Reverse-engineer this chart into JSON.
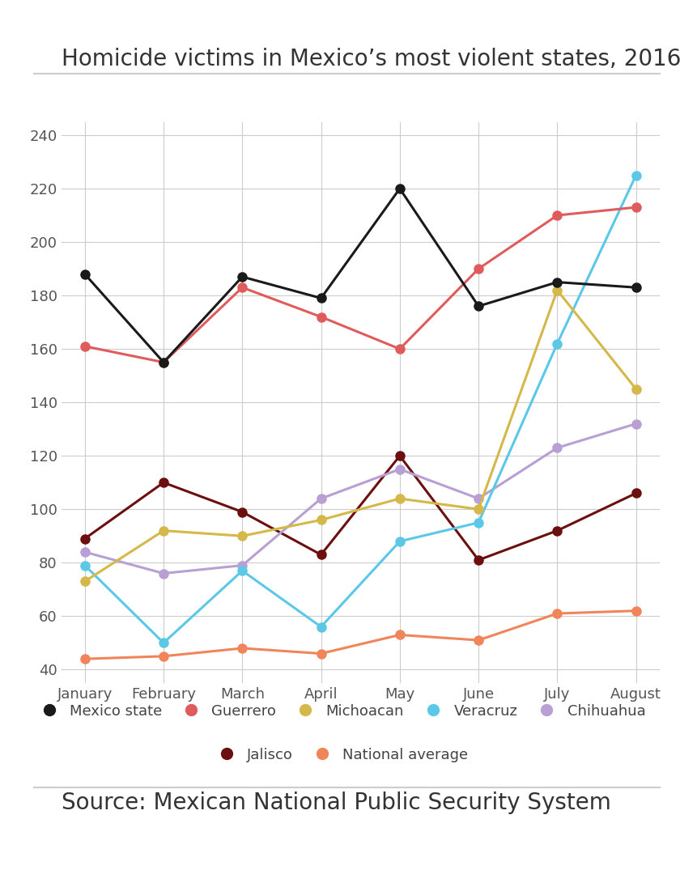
{
  "title": "Homicide victims in Mexico’s most violent states, 2016",
  "source": "Source: Mexican National Public Security System",
  "months": [
    "January",
    "February",
    "March",
    "April",
    "May",
    "June",
    "July",
    "August"
  ],
  "series": {
    "Mexico state": {
      "values": [
        188,
        155,
        187,
        179,
        220,
        176,
        185,
        183
      ],
      "color": "#1a1a1a",
      "zorder": 7
    },
    "Guerrero": {
      "values": [
        161,
        155,
        183,
        172,
        160,
        190,
        210,
        213
      ],
      "color": "#e05c5c",
      "zorder": 6
    },
    "Michoacan": {
      "values": [
        73,
        92,
        90,
        96,
        104,
        100,
        182,
        145
      ],
      "color": "#d4b84a",
      "zorder": 5
    },
    "Veracruz": {
      "values": [
        79,
        50,
        77,
        56,
        88,
        95,
        162,
        225
      ],
      "color": "#5bc8e8",
      "zorder": 4
    },
    "Chihuahua": {
      "values": [
        84,
        76,
        79,
        104,
        115,
        104,
        123,
        132
      ],
      "color": "#b89fd4",
      "zorder": 3
    },
    "Jalisco": {
      "values": [
        89,
        110,
        99,
        83,
        120,
        81,
        92,
        106
      ],
      "color": "#6b0f0f",
      "zorder": 2
    },
    "National average": {
      "values": [
        44,
        45,
        48,
        46,
        53,
        51,
        61,
        62
      ],
      "color": "#f0855a",
      "zorder": 1
    }
  },
  "ylim": [
    35,
    245
  ],
  "yticks": [
    40,
    60,
    80,
    100,
    120,
    140,
    160,
    180,
    200,
    220,
    240
  ],
  "bg_color": "#ffffff",
  "grid_color": "#cccccc",
  "title_fontsize": 20,
  "source_fontsize": 20,
  "tick_fontsize": 13,
  "legend_fontsize": 13,
  "marker_size": 8,
  "line_width": 2.2,
  "title_color": "#333333",
  "source_color": "#333333"
}
